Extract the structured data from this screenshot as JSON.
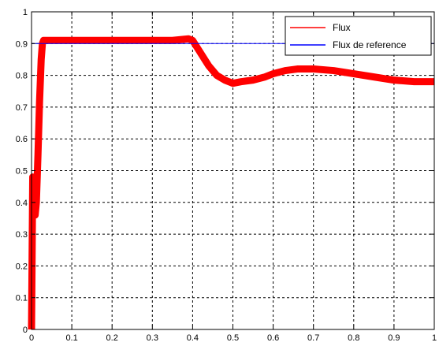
{
  "chart_data": {
    "type": "line",
    "title": "",
    "xlabel": "",
    "ylabel": "",
    "xlim": [
      0,
      1
    ],
    "ylim": [
      0,
      1
    ],
    "x_ticks": [
      "0",
      "0.1",
      "0.2",
      "0.3",
      "0.4",
      "0.5",
      "0.6",
      "0.7",
      "0.8",
      "0.9",
      "1"
    ],
    "y_ticks": [
      "0",
      "0.1",
      "0.2",
      "0.3",
      "0.4",
      "0.5",
      "0.6",
      "0.7",
      "0.8",
      "0.9",
      "1"
    ],
    "grid": true,
    "legend_position": "top-right",
    "series": [
      {
        "name": "Flux",
        "color": "#ff0000",
        "x": [
          0,
          0.003,
          0.006,
          0.009,
          0.012,
          0.016,
          0.02,
          0.024,
          0.027,
          0.03,
          0.05,
          0.1,
          0.15,
          0.2,
          0.25,
          0.3,
          0.35,
          0.39,
          0.4,
          0.42,
          0.44,
          0.46,
          0.48,
          0.5,
          0.52,
          0.55,
          0.58,
          0.6,
          0.63,
          0.66,
          0.7,
          0.75,
          0.8,
          0.85,
          0.9,
          0.95,
          1.0
        ],
        "y": [
          0.0,
          0.48,
          0.4,
          0.36,
          0.4,
          0.55,
          0.72,
          0.85,
          0.9,
          0.91,
          0.91,
          0.91,
          0.91,
          0.91,
          0.91,
          0.91,
          0.91,
          0.915,
          0.91,
          0.87,
          0.83,
          0.8,
          0.785,
          0.775,
          0.78,
          0.785,
          0.795,
          0.805,
          0.815,
          0.82,
          0.82,
          0.815,
          0.805,
          0.795,
          0.785,
          0.78,
          0.78
        ]
      },
      {
        "name": "Flux de reference",
        "color": "#0000ff",
        "x": [
          0.0,
          0.4,
          0.5,
          1.0
        ],
        "y": [
          0.9,
          0.9,
          0.9,
          0.9
        ]
      }
    ]
  }
}
